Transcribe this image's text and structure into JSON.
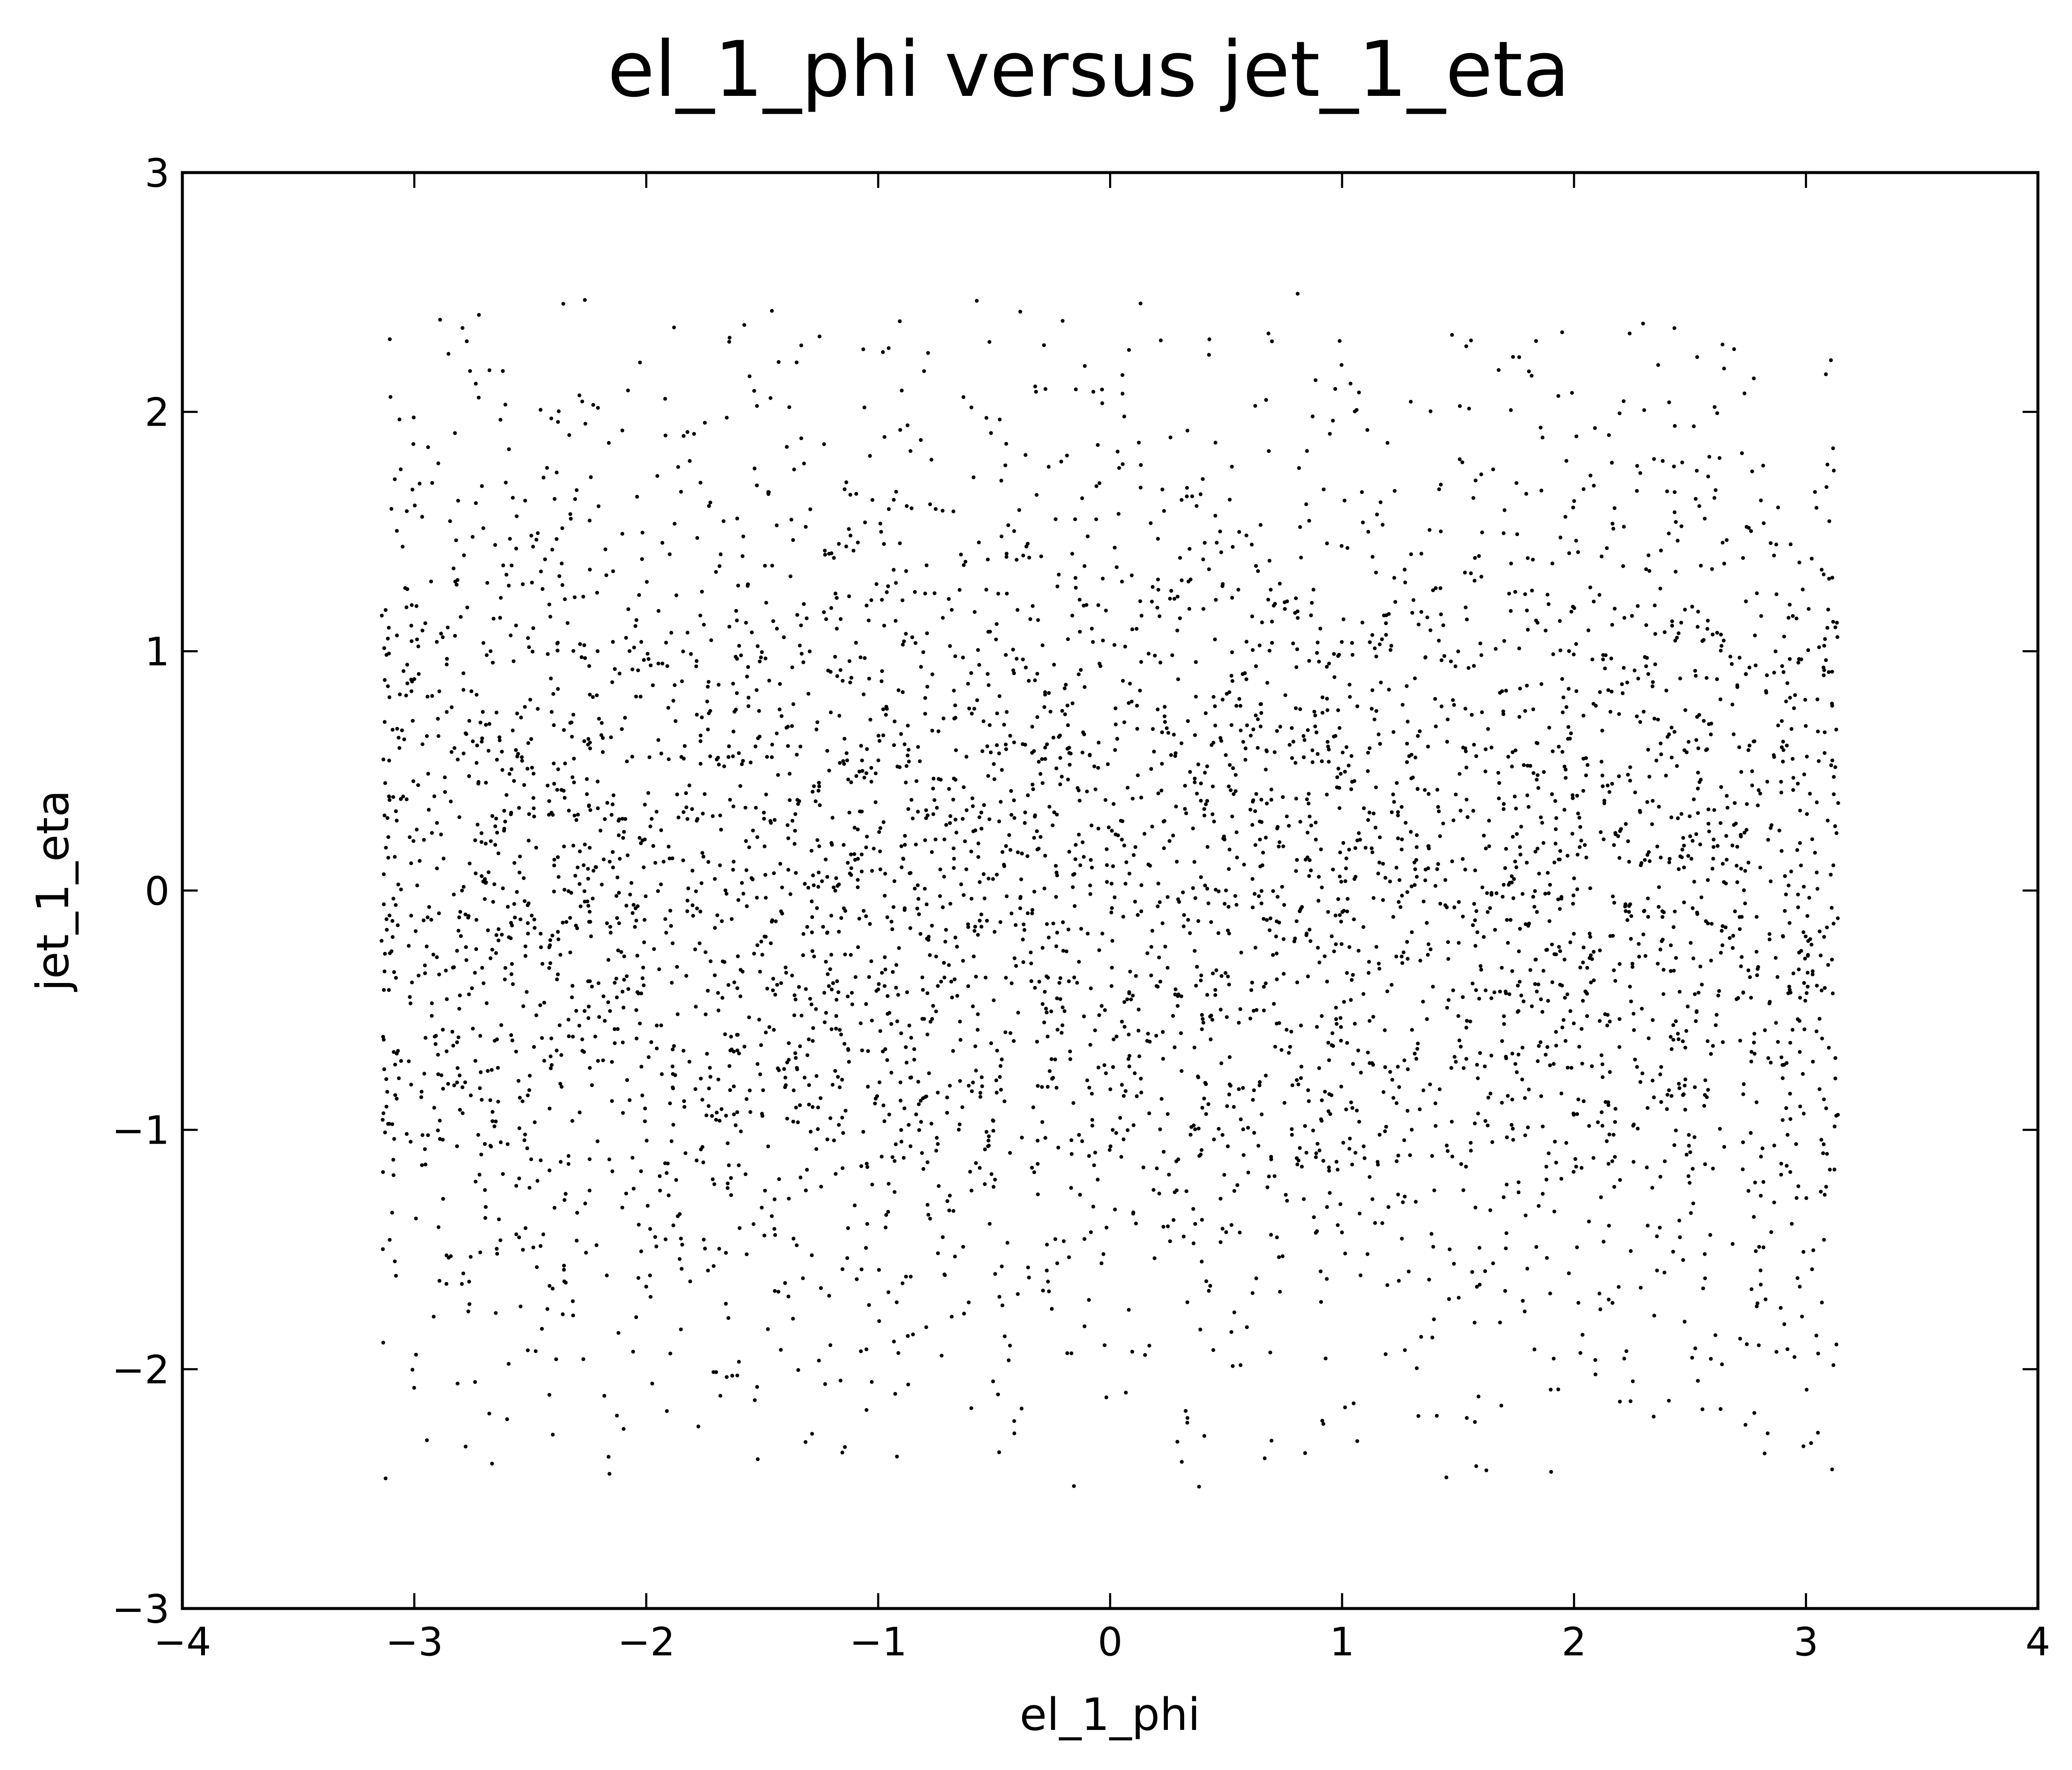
{
  "chart_data": {
    "type": "scatter",
    "title": "el_1_phi versus jet_1_eta",
    "xlabel": "el_1_phi",
    "ylabel": "jet_1_eta",
    "xlim": [
      -4,
      4
    ],
    "ylim": [
      -3,
      3
    ],
    "xticks": [
      -4,
      -3,
      -2,
      -1,
      0,
      1,
      2,
      3,
      4
    ],
    "yticks": [
      -3,
      -2,
      -1,
      0,
      1,
      2,
      3
    ],
    "xtick_labels": [
      "−4",
      "−3",
      "−2",
      "−1",
      "0",
      "1",
      "2",
      "3",
      "4"
    ],
    "ytick_labels": [
      "−3",
      "−2",
      "−1",
      "0",
      "1",
      "2",
      "3"
    ],
    "grid": false,
    "legend": "none",
    "marker_color": "#000000",
    "point_count": 4800,
    "x_range_of_points": [
      -3.14159,
      3.14159
    ],
    "y_range_of_points": [
      -2.5,
      2.5
    ],
    "distribution": "x uniform over [-pi, pi]; y roughly gaussian centered at 0, truncated to [-2.5, 2.5]"
  }
}
